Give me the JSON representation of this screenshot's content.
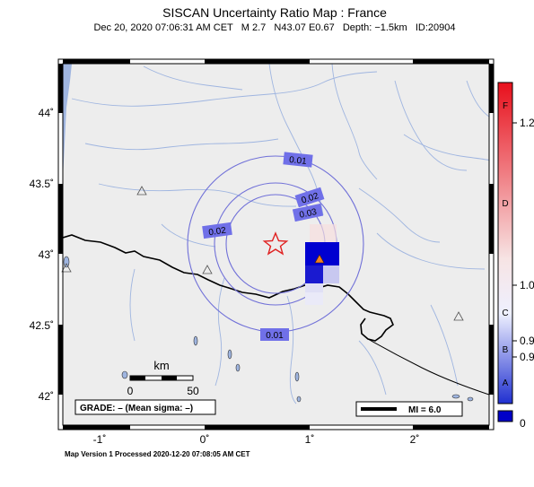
{
  "header": {
    "title": "SISCAN Uncertainty Ratio Map : France",
    "subtitle": "Dec 20, 2020 07:06:31 AM CET   M 2.7   N43.07 E0.67   Depth: −1.5km   ID:20904"
  },
  "axes": {
    "lat_labels": [
      "44˚",
      "43.5˚",
      "43˚",
      "42.5˚",
      "42˚"
    ],
    "lon_labels": [
      "-1˚",
      "0˚",
      "1˚",
      "2˚"
    ]
  },
  "contours": {
    "labels": [
      "0.01",
      "0.02",
      "0.03",
      "0.02",
      "0.01"
    ]
  },
  "scale_bar": {
    "unit": "km",
    "min": "0",
    "max": "50"
  },
  "grade_box": {
    "text": "GRADE: – (Mean sigma: –)"
  },
  "mi_box": {
    "text": "MI = 6.0"
  },
  "colorbar": {
    "left_letters": [
      "F",
      "D",
      "C",
      "B",
      "A"
    ],
    "right_values": [
      "1.2",
      "1.0",
      "0.9",
      "0.9",
      "0"
    ],
    "colors": {
      "top": "#e8101c",
      "mid": "#f7e0e0",
      "bottom": "#2030d0",
      "null": "#0000c8"
    }
  },
  "footer": {
    "text": "Map Version 1 Processed 2020-12-20 07:08:05 AM CET"
  },
  "colors": {
    "land": "#ededed",
    "rivers": "#9fb5e0",
    "border": "#000000",
    "contour": "#7070d8",
    "epicenter": "#e02020"
  }
}
